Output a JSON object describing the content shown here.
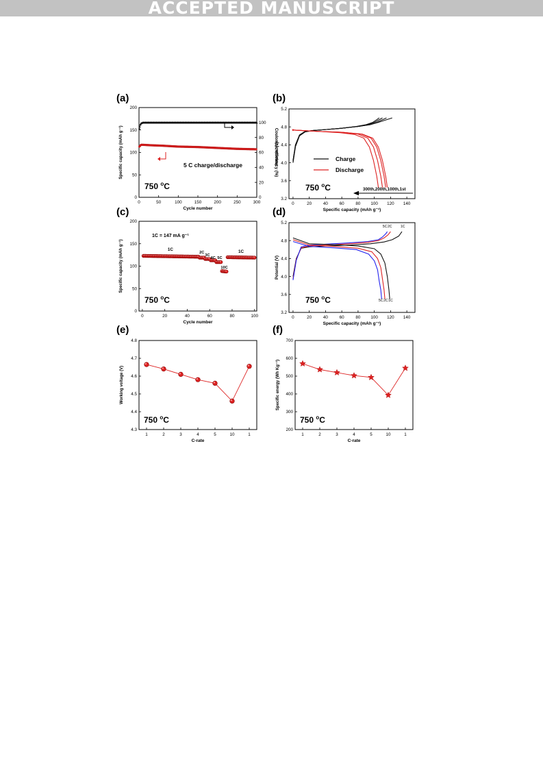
{
  "header": {
    "banner": "ACCEPTED MANUSCRIPT"
  },
  "figure": {
    "panel_labels": [
      "(a)",
      "(b)",
      "(c)",
      "(d)",
      "(e)",
      "(f)"
    ]
  },
  "colors": {
    "red": "#dd2222",
    "black": "#111111",
    "blue": "#2222ee"
  },
  "chart_data": [
    {
      "panel": "(a)",
      "type": "scatter",
      "xlabel": "Cycle number",
      "ylabel": "Specific capacity (mAh g⁻¹)",
      "y2label": "Coulombic efficiency (%)",
      "xlim": [
        0,
        300
      ],
      "ylim": [
        0,
        200
      ],
      "y2lim": [
        0,
        120
      ],
      "xticks": [
        "0",
        "50",
        "100",
        "150",
        "200",
        "250",
        "300"
      ],
      "yticks": [
        "0",
        "50",
        "100",
        "150",
        "200"
      ],
      "y2ticks": [
        "0",
        "20",
        "40",
        "60",
        "80",
        "100"
      ],
      "annotations": [
        "5 C charge/discharge",
        "750 °C"
      ],
      "series": [
        {
          "axis": "left",
          "color": "red",
          "x": [
            1,
            5,
            10,
            30,
            60,
            100,
            150,
            200,
            250,
            300
          ],
          "y": [
            113,
            117,
            117,
            116,
            115,
            113,
            112,
            110,
            108,
            107
          ]
        },
        {
          "axis": "right",
          "color": "black",
          "x": [
            1,
            3,
            5,
            10,
            30,
            100,
            200,
            300
          ],
          "y": [
            92,
            97,
            99,
            100,
            100,
            100,
            100,
            100
          ]
        }
      ]
    },
    {
      "panel": "(b)",
      "type": "line",
      "xlabel": "Specific capacity (mAh g⁻¹)",
      "ylabel": "Potential (V)",
      "xlim": [
        -5,
        150
      ],
      "ylim": [
        3.2,
        5.2
      ],
      "xticks": [
        "0",
        "20",
        "40",
        "60",
        "80",
        "100",
        "120",
        "140"
      ],
      "yticks": [
        "3.2",
        "3.6",
        "4.0",
        "4.4",
        "4.8",
        "5.2"
      ],
      "legend": [
        "Charge",
        "Discharge"
      ],
      "annotations": [
        "300th,200th,100th,1st",
        "750 °C"
      ],
      "series": [
        {
          "color": "black",
          "x": [
            0,
            3,
            8,
            15,
            25,
            40,
            60,
            80,
            95,
            105,
            115,
            122
          ],
          "y": [
            4.05,
            4.4,
            4.62,
            4.7,
            4.72,
            4.74,
            4.77,
            4.81,
            4.85,
            4.9,
            4.96,
            5.0
          ]
        },
        {
          "color": "black",
          "x": [
            0,
            3,
            8,
            15,
            25,
            40,
            60,
            80,
            95,
            103,
            110,
            115
          ],
          "y": [
            4.05,
            4.4,
            4.62,
            4.7,
            4.72,
            4.74,
            4.77,
            4.81,
            4.85,
            4.9,
            4.96,
            5.0
          ]
        },
        {
          "color": "black",
          "x": [
            0,
            3,
            8,
            15,
            25,
            40,
            60,
            80,
            92,
            100,
            106,
            110
          ],
          "y": [
            4.02,
            4.38,
            4.61,
            4.69,
            4.72,
            4.74,
            4.77,
            4.81,
            4.85,
            4.9,
            4.96,
            5.0
          ]
        },
        {
          "color": "black",
          "x": [
            0,
            3,
            8,
            15,
            25,
            40,
            60,
            78,
            90,
            98,
            103,
            106
          ],
          "y": [
            4.0,
            4.36,
            4.6,
            4.69,
            4.72,
            4.74,
            4.77,
            4.81,
            4.85,
            4.9,
            4.96,
            5.0
          ]
        },
        {
          "color": "red",
          "x": [
            0,
            10,
            30,
            60,
            85,
            98,
            105,
            110,
            114,
            116
          ],
          "y": [
            4.73,
            4.72,
            4.7,
            4.68,
            4.64,
            4.55,
            4.35,
            4.05,
            3.7,
            3.45
          ]
        },
        {
          "color": "red",
          "x": [
            0,
            10,
            30,
            60,
            84,
            96,
            103,
            108,
            112,
            114
          ],
          "y": [
            4.73,
            4.72,
            4.7,
            4.68,
            4.64,
            4.55,
            4.35,
            4.05,
            3.7,
            3.45
          ]
        },
        {
          "color": "red",
          "x": [
            0,
            10,
            30,
            60,
            80,
            92,
            99,
            104,
            108,
            110
          ],
          "y": [
            4.73,
            4.72,
            4.7,
            4.68,
            4.64,
            4.55,
            4.35,
            4.05,
            3.7,
            3.45
          ]
        },
        {
          "color": "red",
          "x": [
            0,
            10,
            30,
            58,
            76,
            87,
            94,
            99,
            103,
            105
          ],
          "y": [
            4.73,
            4.72,
            4.7,
            4.67,
            4.63,
            4.55,
            4.35,
            4.05,
            3.7,
            3.45
          ]
        }
      ]
    },
    {
      "panel": "(c)",
      "type": "scatter",
      "xlabel": "Cycle number",
      "ylabel": "Specific capacity (mAh g⁻¹)",
      "xlim": [
        -3,
        102
      ],
      "ylim": [
        0,
        200
      ],
      "xticks": [
        "0",
        "20",
        "40",
        "60",
        "80",
        "100"
      ],
      "yticks": [
        "0",
        "50",
        "100",
        "150",
        "200"
      ],
      "annotations": [
        "1C = 147 mA g⁻¹",
        "1C",
        "2C",
        "3C",
        "4C",
        "5C",
        "10C",
        "1C",
        "750 °C"
      ],
      "segments": [
        {
          "rate": "1C",
          "x_from": 1,
          "x_to": 50,
          "y_from": 123,
          "y_to": 121
        },
        {
          "rate": "2C",
          "x_from": 51,
          "x_to": 55,
          "y_from": 119,
          "y_to": 119
        },
        {
          "rate": "3C",
          "x_from": 56,
          "x_to": 60,
          "y_from": 116,
          "y_to": 116
        },
        {
          "rate": "4C",
          "x_from": 61,
          "x_to": 65,
          "y_from": 113,
          "y_to": 113
        },
        {
          "rate": "5C",
          "x_from": 66,
          "x_to": 70,
          "y_from": 109,
          "y_to": 109
        },
        {
          "rate": "10C",
          "x_from": 71,
          "x_to": 75,
          "y_from": 89,
          "y_to": 88
        },
        {
          "rate": "1C",
          "x_from": 76,
          "x_to": 100,
          "y_from": 120,
          "y_to": 119
        }
      ]
    },
    {
      "panel": "(d)",
      "type": "line",
      "xlabel": "Specific capacity (mAh g⁻¹)",
      "ylabel": "Potential (V)",
      "xlim": [
        -5,
        150
      ],
      "ylim": [
        3.2,
        5.2
      ],
      "xticks": [
        "0",
        "20",
        "40",
        "60",
        "80",
        "100",
        "120",
        "140"
      ],
      "yticks": [
        "3.2",
        "3.6",
        "4.0",
        "4.4",
        "4.8",
        "5.2"
      ],
      "annotations": [
        "5C",
        "2C",
        "1C",
        "5C",
        "2C",
        "1C",
        "750 °C"
      ],
      "series": [
        {
          "name": "1C",
          "color": "black",
          "x": [
            0,
            4,
            10,
            20,
            40,
            70,
            95,
            112,
            122,
            130,
            134
          ],
          "y": [
            4.0,
            4.4,
            4.63,
            4.66,
            4.68,
            4.7,
            4.73,
            4.77,
            4.82,
            4.9,
            5.0
          ]
        },
        {
          "name": "2C",
          "color": "red",
          "x": [
            0,
            4,
            10,
            20,
            40,
            70,
            92,
            105,
            112,
            117,
            120
          ],
          "y": [
            3.95,
            4.38,
            4.64,
            4.68,
            4.7,
            4.73,
            4.76,
            4.8,
            4.86,
            4.93,
            5.0
          ]
        },
        {
          "name": "5C",
          "color": "blue",
          "x": [
            0,
            4,
            10,
            20,
            40,
            70,
            92,
            105,
            110,
            114,
            116
          ],
          "y": [
            3.92,
            4.36,
            4.66,
            4.7,
            4.72,
            4.75,
            4.78,
            4.82,
            4.88,
            4.95,
            5.0
          ]
        },
        {
          "name": "1C",
          "color": "black",
          "x": [
            0,
            20,
            50,
            80,
            100,
            108,
            113,
            116,
            118,
            119
          ],
          "y": [
            4.86,
            4.73,
            4.71,
            4.68,
            4.62,
            4.5,
            4.3,
            4.0,
            3.7,
            3.5
          ]
        },
        {
          "name": "2C",
          "color": "red",
          "x": [
            0,
            20,
            50,
            80,
            97,
            104,
            108,
            110,
            112,
            113
          ],
          "y": [
            4.82,
            4.7,
            4.67,
            4.63,
            4.55,
            4.4,
            4.2,
            3.95,
            3.7,
            3.5
          ]
        },
        {
          "name": "5C",
          "color": "blue",
          "x": [
            0,
            20,
            50,
            78,
            93,
            100,
            104,
            106,
            108,
            109
          ],
          "y": [
            4.78,
            4.67,
            4.64,
            4.6,
            4.5,
            4.35,
            4.15,
            3.9,
            3.7,
            3.5
          ]
        }
      ]
    },
    {
      "panel": "(e)",
      "type": "line",
      "xlabel": "C-rate",
      "ylabel": "Working voltage (V)",
      "categories": [
        "1",
        "2",
        "3",
        "4",
        "5",
        "10",
        "1"
      ],
      "values": [
        4.665,
        4.64,
        4.61,
        4.58,
        4.56,
        4.46,
        4.655
      ],
      "ylim": [
        4.3,
        4.8
      ],
      "yticks": [
        "4.3",
        "4.4",
        "4.5",
        "4.6",
        "4.7",
        "4.8"
      ],
      "marker": "circle",
      "annotations": [
        "750 °C"
      ]
    },
    {
      "panel": "(f)",
      "type": "line",
      "xlabel": "C-rate",
      "ylabel": "Specific energy (Wh Kg⁻¹)",
      "categories": [
        "1",
        "2",
        "3",
        "4",
        "5",
        "10",
        "1"
      ],
      "values": [
        570,
        537,
        520,
        503,
        493,
        393,
        545
      ],
      "ylim": [
        200,
        700
      ],
      "yticks": [
        "200",
        "300",
        "400",
        "500",
        "600",
        "700"
      ],
      "marker": "star",
      "annotations": [
        "750 °C"
      ]
    }
  ]
}
